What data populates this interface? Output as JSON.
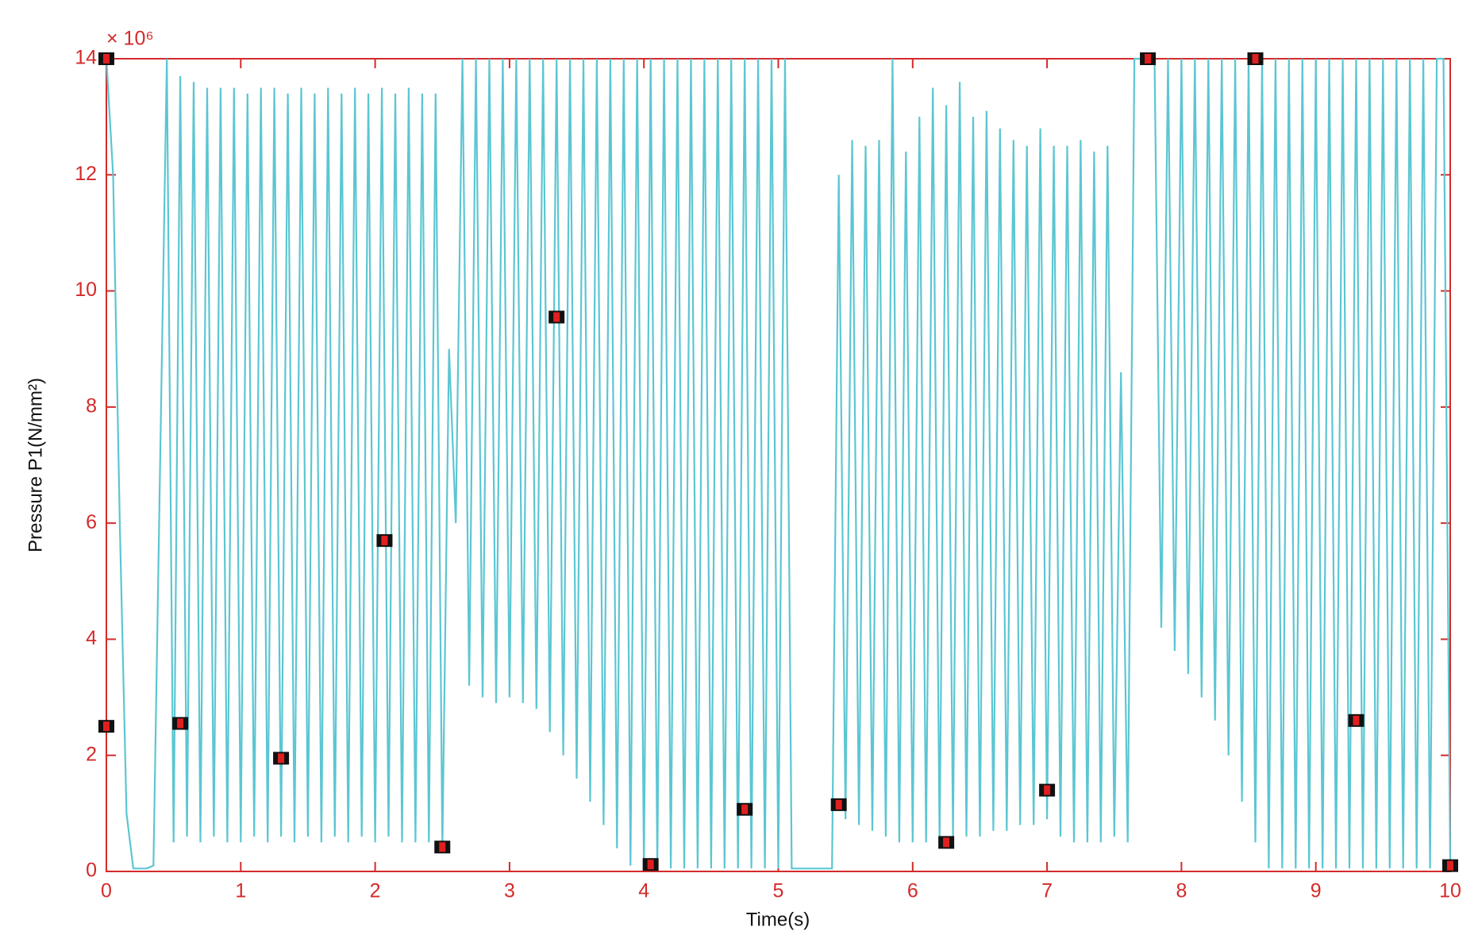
{
  "chart_data": {
    "type": "line",
    "y_scale_label": "× 10⁶",
    "xlabel": "Time(s)",
    "ylabel": "Pressure P1(N/mm²)",
    "xlim": [
      0,
      10
    ],
    "ylim": [
      0,
      14
    ],
    "xticks": [
      0,
      1,
      2,
      3,
      4,
      5,
      6,
      7,
      8,
      9,
      10
    ],
    "yticks": [
      0,
      2,
      4,
      6,
      8,
      10,
      12,
      14
    ],
    "axis_color": "#d42a2a",
    "series": [
      {
        "color": "#5cc6d2",
        "x": [
          0,
          0.05,
          0.1,
          0.15,
          0.2,
          0.3,
          0.35,
          0.45,
          0.5,
          0.55,
          0.6,
          0.65,
          0.7,
          0.75,
          0.8,
          0.85,
          0.9,
          0.95,
          1.0,
          1.05,
          1.1,
          1.15,
          1.2,
          1.25,
          1.3,
          1.35,
          1.4,
          1.45,
          1.5,
          1.55,
          1.6,
          1.65,
          1.7,
          1.75,
          1.8,
          1.85,
          1.9,
          1.95,
          2.0,
          2.05,
          2.1,
          2.15,
          2.2,
          2.25,
          2.3,
          2.35,
          2.4,
          2.45,
          2.5,
          2.55,
          2.6,
          2.65,
          2.7,
          2.75,
          2.8,
          2.85,
          2.9,
          2.95,
          3.0,
          3.05,
          3.1,
          3.15,
          3.2,
          3.25,
          3.3,
          3.35,
          3.4,
          3.45,
          3.5,
          3.55,
          3.6,
          3.65,
          3.7,
          3.75,
          3.8,
          3.85,
          3.9,
          3.95,
          4.0,
          4.05,
          4.1,
          4.15,
          4.2,
          4.25,
          4.3,
          4.35,
          4.4,
          4.45,
          4.5,
          4.55,
          4.6,
          4.65,
          4.7,
          4.75,
          4.8,
          4.85,
          4.9,
          4.95,
          5.0,
          5.05,
          5.1,
          5.15,
          5.2,
          5.25,
          5.3,
          5.35,
          5.4,
          5.45,
          5.5,
          5.55,
          5.6,
          5.65,
          5.7,
          5.75,
          5.8,
          5.85,
          5.9,
          5.95,
          6.0,
          6.05,
          6.1,
          6.15,
          6.2,
          6.25,
          6.3,
          6.35,
          6.4,
          6.45,
          6.5,
          6.55,
          6.6,
          6.65,
          6.7,
          6.75,
          6.8,
          6.85,
          6.9,
          6.95,
          7.0,
          7.05,
          7.1,
          7.15,
          7.2,
          7.25,
          7.3,
          7.35,
          7.4,
          7.45,
          7.5,
          7.55,
          7.6,
          7.65,
          7.7,
          7.75,
          7.8,
          7.85,
          7.9,
          7.95,
          8.0,
          8.05,
          8.1,
          8.15,
          8.2,
          8.25,
          8.3,
          8.35,
          8.4,
          8.45,
          8.5,
          8.55,
          8.6,
          8.65,
          8.7,
          8.75,
          8.8,
          8.85,
          8.9,
          8.95,
          9.0,
          9.05,
          9.1,
          9.15,
          9.2,
          9.25,
          9.3,
          9.35,
          9.4,
          9.45,
          9.5,
          9.55,
          9.6,
          9.65,
          9.7,
          9.75,
          9.8,
          9.85,
          9.9,
          9.95,
          10.0
        ],
        "values": [
          14,
          12,
          6,
          1,
          0.05,
          0.05,
          0.1,
          14,
          0.5,
          13.7,
          0.6,
          13.6,
          0.5,
          13.5,
          0.6,
          13.5,
          0.5,
          13.5,
          0.5,
          13.4,
          0.6,
          13.5,
          0.5,
          13.5,
          0.6,
          13.4,
          0.5,
          13.5,
          0.6,
          13.4,
          0.5,
          13.5,
          0.6,
          13.4,
          0.5,
          13.5,
          0.6,
          13.4,
          0.5,
          13.5,
          0.6,
          13.4,
          0.5,
          13.5,
          0.5,
          13.4,
          0.5,
          13.4,
          0.42,
          9,
          6,
          14,
          3.2,
          14,
          3,
          14,
          2.9,
          14,
          3,
          14,
          2.9,
          14,
          2.8,
          14,
          2.4,
          14,
          2,
          14,
          1.6,
          14,
          1.2,
          14,
          0.8,
          14,
          0.4,
          14,
          0.1,
          14,
          0.05,
          14,
          0.05,
          14,
          0.05,
          14,
          0.05,
          14,
          0.05,
          14,
          0.05,
          14,
          0.05,
          14,
          0.05,
          14,
          0.05,
          14,
          0.05,
          14,
          0.05,
          14,
          0.05,
          0.05,
          0.05,
          0.05,
          0.05,
          0.05,
          0.05,
          12,
          0.9,
          12.6,
          0.8,
          12.5,
          0.7,
          12.6,
          0.6,
          14,
          0.5,
          12.4,
          0.5,
          13,
          0.5,
          13.5,
          0.5,
          13.2,
          0.6,
          13.6,
          0.6,
          13,
          0.6,
          13.1,
          0.7,
          12.8,
          0.7,
          12.6,
          0.8,
          12.5,
          0.8,
          12.8,
          0.9,
          12.5,
          0.6,
          12.5,
          0.5,
          12.6,
          0.5,
          12.4,
          0.5,
          12.5,
          0.6,
          8.6,
          0.5,
          14,
          14,
          14,
          14,
          4.2,
          14,
          3.8,
          14,
          3.4,
          14,
          3,
          14,
          2.6,
          14,
          2,
          14,
          1.2,
          14,
          0.5,
          14,
          0.05,
          14,
          0.05,
          14,
          0.05,
          14,
          0.05,
          14,
          0.05,
          14,
          0.05,
          14,
          0.05,
          14,
          0.05,
          14,
          0.05,
          14,
          0.05,
          14,
          0.05,
          14,
          0.05,
          14,
          0.05,
          14,
          14,
          0.1
        ]
      }
    ],
    "markers": {
      "x": [
        0,
        0,
        0.55,
        1.3,
        2.07,
        2.5,
        3.35,
        4.05,
        4.75,
        5.45,
        6.25,
        7.0,
        7.75,
        8.55,
        9.3,
        10
      ],
      "values": [
        14,
        2.5,
        2.55,
        1.95,
        5.7,
        0.42,
        9.55,
        0.12,
        1.07,
        1.15,
        0.5,
        1.4,
        14,
        14,
        2.6,
        0.1
      ]
    }
  }
}
